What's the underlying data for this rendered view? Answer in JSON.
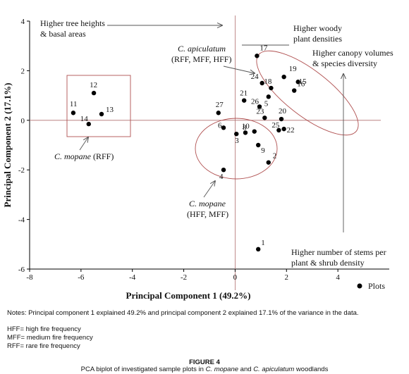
{
  "chart_data": {
    "type": "scatter",
    "xlabel": "Principal Component 1 (49.2%)",
    "ylabel": "Principal Component 2 (17.1%)",
    "xlim": [
      -8,
      6
    ],
    "ylim": [
      -6,
      4
    ],
    "xticks": [
      "-8",
      "-6",
      "-4",
      "-2",
      "0",
      "2",
      "4"
    ],
    "xtick_values": [
      -8,
      -6,
      -4,
      -2,
      0,
      2,
      4
    ],
    "yticks": [
      "4",
      "2",
      "0",
      "-2",
      "-4",
      "-6"
    ],
    "ytick_values": [
      4,
      2,
      0,
      -2,
      -4,
      -6
    ],
    "grid": false,
    "legend": {
      "label": "Plots",
      "placement": "bottom-right"
    },
    "points": [
      {
        "label": "1",
        "x": 0.9,
        "y": -5.2
      },
      {
        "label": "2",
        "x": 1.3,
        "y": -1.7
      },
      {
        "label": "3",
        "x": 0.05,
        "y": -0.55
      },
      {
        "label": "4",
        "x": -0.45,
        "y": -2.0
      },
      {
        "label": "5",
        "x": 1.3,
        "y": 0.95
      },
      {
        "label": "6",
        "x": -0.45,
        "y": -0.3
      },
      {
        "label": "8",
        "x": 0.4,
        "y": -0.5
      },
      {
        "label": "9",
        "x": 0.9,
        "y": -1.0
      },
      {
        "label": "10",
        "x": 0.75,
        "y": -0.45
      },
      {
        "label": "11",
        "x": -6.3,
        "y": 0.3
      },
      {
        "label": "12",
        "x": -5.5,
        "y": 1.1
      },
      {
        "label": "13",
        "x": -5.2,
        "y": 0.25
      },
      {
        "label": "14",
        "x": -5.7,
        "y": -0.15
      },
      {
        "label": "15",
        "x": 2.45,
        "y": 1.55
      },
      {
        "label": "16",
        "x": 2.3,
        "y": 1.2
      },
      {
        "label": "17",
        "x": 0.85,
        "y": 2.6
      },
      {
        "label": "18",
        "x": 1.4,
        "y": 1.3
      },
      {
        "label": "19",
        "x": 1.9,
        "y": 1.75
      },
      {
        "label": "20",
        "x": 1.8,
        "y": 0.05
      },
      {
        "label": "21",
        "x": 0.35,
        "y": 0.8
      },
      {
        "label": "22",
        "x": 1.9,
        "y": -0.35
      },
      {
        "label": "23",
        "x": 1.15,
        "y": 0.1
      },
      {
        "label": "24",
        "x": 1.05,
        "y": 1.5
      },
      {
        "label": "25",
        "x": 1.7,
        "y": -0.4
      },
      {
        "label": "26",
        "x": 0.95,
        "y": 0.55
      },
      {
        "label": "27",
        "x": -0.65,
        "y": 0.3
      }
    ],
    "annotations": {
      "tree_heights": [
        "Higher tree heights",
        "& basal areas"
      ],
      "woody_densities": [
        "Higher woody",
        "plant densities"
      ],
      "canopy_volumes": [
        "Higher canopy volumes",
        "& species diversity"
      ],
      "stems": [
        "Higher number of stems per",
        "plant & shrub density"
      ],
      "c_apiculatum": [
        "C. apiculatum",
        "(RFF, MFF, HFF)"
      ],
      "c_mopane_rff": [
        "C. mopane",
        " (RFF)"
      ],
      "c_mopane_hff": [
        "C. mopane",
        "(HFF, MFF)"
      ]
    }
  },
  "notes": "Notes: Principal component 1 explained 49.2% and principal component 2 explained 17.1% of the variance in the data.",
  "abbreviations": [
    "HFF= high fire frequency",
    "MFF= medium fire frequency",
    "RFF= rare fire frequency"
  ],
  "figure_label": "FIGURE 4",
  "figure_caption": "PCA biplot of investigated sample plots in C. mopane and C. apiculatum woodlands"
}
